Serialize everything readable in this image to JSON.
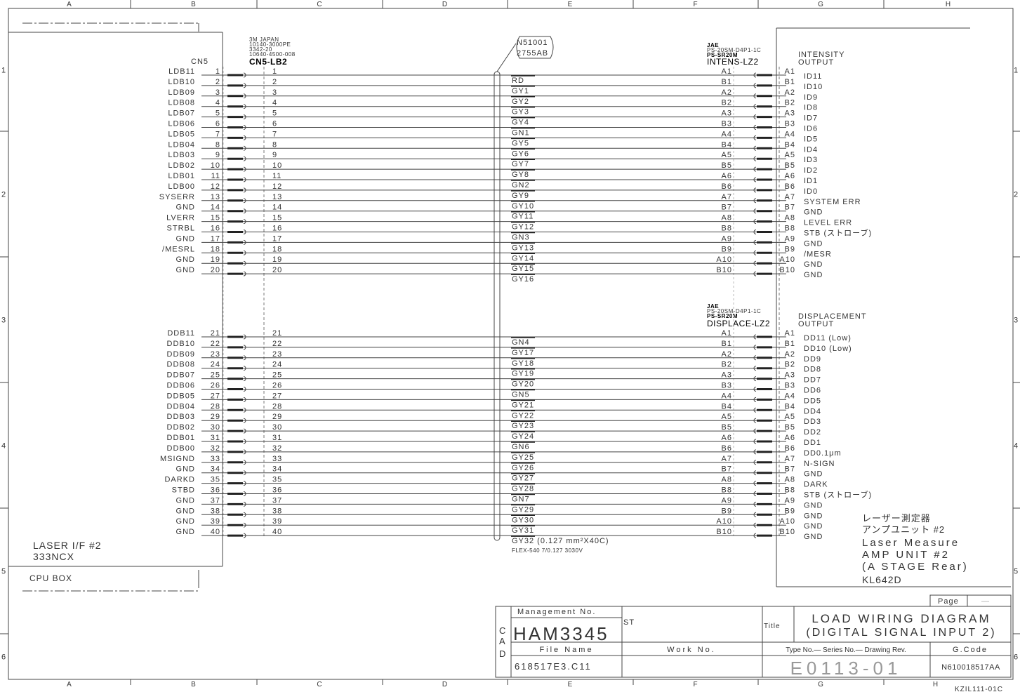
{
  "frame": {
    "columns": [
      "A",
      "B",
      "C",
      "D",
      "E",
      "F",
      "G",
      "H"
    ],
    "rows": [
      "1",
      "2",
      "3",
      "4",
      "5",
      "6"
    ]
  },
  "left_unit": {
    "connector_name": "CN5",
    "name_line1": "LASER I/F #2",
    "name_line2": "333NCX",
    "box_label": "CPU BOX",
    "top_signals": [
      "LDB11",
      "LDB10",
      "LDB09",
      "LDB08",
      "LDB07",
      "LDB06",
      "LDB05",
      "LDB04",
      "LDB03",
      "LDB02",
      "LDB01",
      "LDB00",
      "SYSERR",
      "GND",
      "LVERR",
      "STRBL",
      "GND",
      "/MESRL",
      "GND",
      "GND"
    ],
    "bottom_signals": [
      "DDB11",
      "DDB10",
      "DDB09",
      "DDB08",
      "DDB07",
      "DDB06",
      "DDB05",
      "DDB04",
      "DDB03",
      "DDB02",
      "DDB01",
      "DDB00",
      "MSIGND",
      "GND",
      "DARKD",
      "STBD",
      "GND",
      "GND",
      "GND",
      "GND"
    ]
  },
  "cable_connector": {
    "maker": "3M JAPAN",
    "part1": "10140-3000PE",
    "part2": "3342-20",
    "part3": "10640-4500-008",
    "name": "CN5-LB2"
  },
  "cable": {
    "callout_line1": "N51001",
    "callout_line2": "2755AB",
    "top_wires": [
      "RD",
      "GY1",
      "GY2",
      "GY3",
      "GY4",
      "GN1",
      "GY5",
      "GY6",
      "GY7",
      "GY8",
      "GN2",
      "GY9",
      "GY10",
      "GY11",
      "GY12",
      "GN3",
      "GY13",
      "GY14",
      "GY15",
      "GY16"
    ],
    "bottom_wires": [
      "GN4",
      "GY17",
      "GY18",
      "GY19",
      "GY20",
      "GN5",
      "GY21",
      "GY22",
      "GY23",
      "GY24",
      "GN6",
      "GY25",
      "GY26",
      "GY27",
      "GY28",
      "GN7",
      "GY29",
      "GY30",
      "GY31",
      "GY32 (0.127 mm²X40C)"
    ],
    "spec": "FLEX-540 7/0.127 3030V"
  },
  "intens_connector": {
    "maker": "JAE",
    "part1": "PS-20SM-D4P1-1C",
    "part2": "PS-SR20M",
    "name": "INTENS-LZ2",
    "output_line1": "INTENSITY",
    "output_line2": "OUTPUT",
    "signals": [
      "ID11",
      "ID10",
      "ID9",
      "ID8",
      "ID7",
      "ID6",
      "ID5",
      "ID4",
      "ID3",
      "ID2",
      "ID1",
      "ID0",
      "SYSTEM ERR",
      "GND",
      "LEVEL ERR",
      "STB (ストローブ)",
      "GND",
      "/MESR",
      "GND",
      "GND"
    ]
  },
  "displace_connector": {
    "maker": "JAE",
    "part1": "PS-20SM-D4P1-1C",
    "part2": "PS-SR20M",
    "name": "DISPLACE-LZ2",
    "output_line1": "DISPLACEMENT",
    "output_line2": "OUTPUT",
    "signals": [
      "DD11 (Low)",
      "DD10 (Low)",
      "DD9",
      "DD8",
      "DD7",
      "DD6",
      "DD5",
      "DD4",
      "DD3",
      "DD2",
      "DD1",
      "DD0.1μm",
      "N-SIGN",
      "GND",
      "DARK",
      "STB (ストローブ)",
      "GND",
      "GND",
      "GND",
      "GND"
    ]
  },
  "pin_labels": [
    "A1",
    "B1",
    "A2",
    "B2",
    "A3",
    "B3",
    "A4",
    "B4",
    "A5",
    "B5",
    "A6",
    "B6",
    "A7",
    "B7",
    "A8",
    "B8",
    "A9",
    "B9",
    "A10",
    "B10"
  ],
  "right_unit": {
    "line1": "レーザー測定器",
    "line2": "アンプユニット #2",
    "line3": "Laser Measure",
    "line4": "AMP UNIT #2",
    "line5": "(A STAGE Rear)",
    "model": "KL642D"
  },
  "title_block": {
    "page_label": "Page",
    "page_value": "—",
    "cad": [
      "C",
      "A",
      "D"
    ],
    "management_label": "Management No.",
    "management_no": "HAM3345",
    "st_label": "ST",
    "title_label": "Title",
    "title_line1": "LOAD WIRING DIAGRAM",
    "title_line2": "(DIGITAL SIGNAL INPUT 2)",
    "file_name_label": "File Name",
    "file_name": "618517E3.C11",
    "work_no_label": "Work No.",
    "type_label": "Type No.— Series No.— Drawing Rev.",
    "drawing_no": "E0113-01",
    "gcode_label": "G.Code",
    "gcode": "N610018517AA",
    "form_no": "KZIL111-01C"
  }
}
